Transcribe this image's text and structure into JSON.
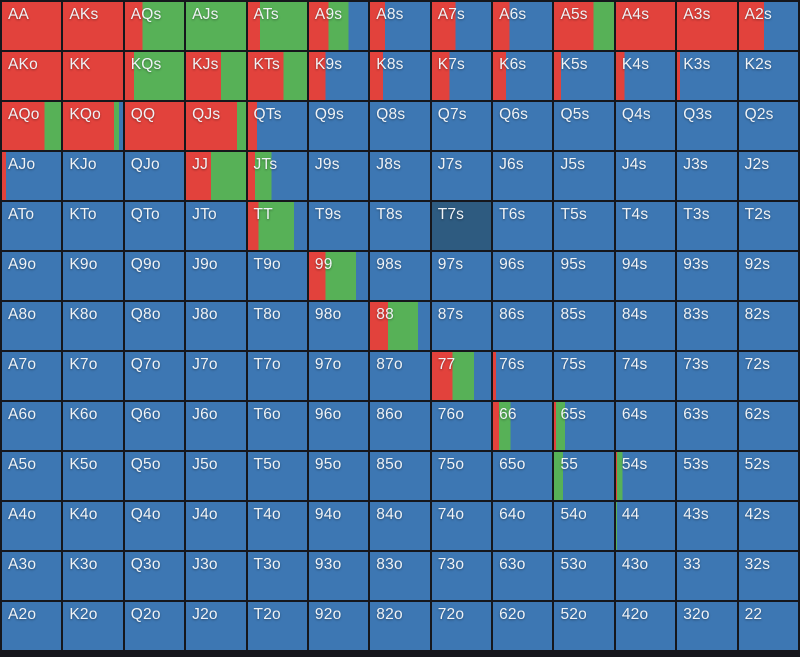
{
  "app": "poker-hand-range-matrix",
  "highlighted_cell": "T7s",
  "colors": {
    "r": "#e2423c",
    "g": "#57b157",
    "b": "#3d77b3",
    "d": "#2e5b80",
    "border": "#16171c",
    "text": "#f0f3f6"
  },
  "grid": {
    "rows": [
      {
        "cells": [
          {
            "l": "AA",
            "s": [
              [
                "r",
                100
              ]
            ]
          },
          {
            "l": "AKs",
            "s": [
              [
                "r",
                100
              ]
            ]
          },
          {
            "l": "AQs",
            "s": [
              [
                "r",
                30
              ],
              [
                "g",
                70
              ]
            ]
          },
          {
            "l": "AJs",
            "s": [
              [
                "g",
                100
              ]
            ]
          },
          {
            "l": "ATs",
            "s": [
              [
                "r",
                20
              ],
              [
                "g",
                80
              ]
            ]
          },
          {
            "l": "A9s",
            "s": [
              [
                "r",
                33
              ],
              [
                "g",
                34
              ],
              [
                "b",
                33
              ]
            ]
          },
          {
            "l": "A8s",
            "s": [
              [
                "r",
                25
              ],
              [
                "b",
                75
              ]
            ]
          },
          {
            "l": "A7s",
            "s": [
              [
                "r",
                40
              ],
              [
                "b",
                60
              ]
            ]
          },
          {
            "l": "A6s",
            "s": [
              [
                "r",
                28
              ],
              [
                "b",
                72
              ]
            ]
          },
          {
            "l": "A5s",
            "s": [
              [
                "r",
                66
              ],
              [
                "g",
                34
              ]
            ]
          },
          {
            "l": "A4s",
            "s": [
              [
                "r",
                100
              ]
            ]
          },
          {
            "l": "A3s",
            "s": [
              [
                "r",
                100
              ]
            ]
          },
          {
            "l": "A2s",
            "s": [
              [
                "r",
                42
              ],
              [
                "b",
                58
              ]
            ]
          }
        ]
      },
      {
        "cells": [
          {
            "l": "AKo",
            "s": [
              [
                "r",
                100
              ]
            ]
          },
          {
            "l": "KK",
            "s": [
              [
                "r",
                100
              ]
            ]
          },
          {
            "l": "KQs",
            "s": [
              [
                "r",
                15
              ],
              [
                "g",
                85
              ]
            ]
          },
          {
            "l": "KJs",
            "s": [
              [
                "r",
                58
              ],
              [
                "g",
                42
              ]
            ]
          },
          {
            "l": "KTs",
            "s": [
              [
                "r",
                60
              ],
              [
                "g",
                40
              ]
            ]
          },
          {
            "l": "K9s",
            "s": [
              [
                "r",
                28
              ],
              [
                "b",
                72
              ]
            ]
          },
          {
            "l": "K8s",
            "s": [
              [
                "r",
                22
              ],
              [
                "b",
                78
              ]
            ]
          },
          {
            "l": "K7s",
            "s": [
              [
                "r",
                30
              ],
              [
                "b",
                70
              ]
            ]
          },
          {
            "l": "K6s",
            "s": [
              [
                "r",
                22
              ],
              [
                "b",
                78
              ]
            ]
          },
          {
            "l": "K5s",
            "s": [
              [
                "r",
                12
              ],
              [
                "b",
                88
              ]
            ]
          },
          {
            "l": "K4s",
            "s": [
              [
                "r",
                14
              ],
              [
                "b",
                86
              ]
            ]
          },
          {
            "l": "K3s",
            "s": [
              [
                "r",
                5
              ],
              [
                "b",
                95
              ]
            ]
          },
          {
            "l": "K2s"
          }
        ]
      },
      {
        "cells": [
          {
            "l": "AQo",
            "s": [
              [
                "r",
                72
              ],
              [
                "g",
                28
              ]
            ]
          },
          {
            "l": "KQo",
            "s": [
              [
                "r",
                85
              ],
              [
                "g",
                8
              ],
              [
                "b",
                7
              ]
            ]
          },
          {
            "l": "QQ",
            "s": [
              [
                "r",
                100
              ]
            ]
          },
          {
            "l": "QJs",
            "s": [
              [
                "r",
                85
              ],
              [
                "g",
                15
              ]
            ]
          },
          {
            "l": "QTs",
            "s": [
              [
                "r",
                15
              ],
              [
                "b",
                85
              ]
            ]
          },
          {
            "l": "Q9s"
          },
          {
            "l": "Q8s"
          },
          {
            "l": "Q7s"
          },
          {
            "l": "Q6s"
          },
          {
            "l": "Q5s"
          },
          {
            "l": "Q4s"
          },
          {
            "l": "Q3s"
          },
          {
            "l": "Q2s"
          }
        ]
      },
      {
        "cells": [
          {
            "l": "AJo",
            "s": [
              [
                "r",
                7
              ],
              [
                "b",
                93
              ]
            ]
          },
          {
            "l": "KJo"
          },
          {
            "l": "QJo"
          },
          {
            "l": "JJ",
            "s": [
              [
                "r",
                42
              ],
              [
                "g",
                58
              ]
            ]
          },
          {
            "l": "JTs",
            "s": [
              [
                "r",
                12
              ],
              [
                "g",
                28
              ],
              [
                "b",
                60
              ]
            ]
          },
          {
            "l": "J9s"
          },
          {
            "l": "J8s"
          },
          {
            "l": "J7s"
          },
          {
            "l": "J6s"
          },
          {
            "l": "J5s"
          },
          {
            "l": "J4s"
          },
          {
            "l": "J3s"
          },
          {
            "l": "J2s"
          }
        ]
      },
      {
        "cells": [
          {
            "l": "ATo"
          },
          {
            "l": "KTo"
          },
          {
            "l": "QTo"
          },
          {
            "l": "JTo"
          },
          {
            "l": "TT",
            "s": [
              [
                "r",
                18
              ],
              [
                "g",
                60
              ],
              [
                "b",
                22
              ]
            ]
          },
          {
            "l": "T9s"
          },
          {
            "l": "T8s"
          },
          {
            "l": "T7s",
            "s": [
              [
                "d",
                100
              ]
            ]
          },
          {
            "l": "T6s"
          },
          {
            "l": "T5s"
          },
          {
            "l": "T4s"
          },
          {
            "l": "T3s"
          },
          {
            "l": "T2s"
          }
        ]
      },
      {
        "cells": [
          {
            "l": "A9o"
          },
          {
            "l": "K9o"
          },
          {
            "l": "Q9o"
          },
          {
            "l": "J9o"
          },
          {
            "l": "T9o"
          },
          {
            "l": "99",
            "s": [
              [
                "r",
                28
              ],
              [
                "g",
                52
              ],
              [
                "b",
                20
              ]
            ]
          },
          {
            "l": "98s"
          },
          {
            "l": "97s"
          },
          {
            "l": "96s"
          },
          {
            "l": "95s"
          },
          {
            "l": "94s"
          },
          {
            "l": "93s"
          },
          {
            "l": "92s"
          }
        ]
      },
      {
        "cells": [
          {
            "l": "A8o"
          },
          {
            "l": "K8o"
          },
          {
            "l": "Q8o"
          },
          {
            "l": "J8o"
          },
          {
            "l": "T8o"
          },
          {
            "l": "98o"
          },
          {
            "l": "88",
            "s": [
              [
                "r",
                30
              ],
              [
                "g",
                50
              ],
              [
                "b",
                20
              ]
            ]
          },
          {
            "l": "87s"
          },
          {
            "l": "86s"
          },
          {
            "l": "85s"
          },
          {
            "l": "84s"
          },
          {
            "l": "83s"
          },
          {
            "l": "82s"
          }
        ]
      },
      {
        "cells": [
          {
            "l": "A7o"
          },
          {
            "l": "K7o"
          },
          {
            "l": "Q7o"
          },
          {
            "l": "J7o"
          },
          {
            "l": "T7o"
          },
          {
            "l": "97o"
          },
          {
            "l": "87o"
          },
          {
            "l": "77",
            "s": [
              [
                "r",
                35
              ],
              [
                "g",
                36
              ],
              [
                "b",
                29
              ]
            ]
          },
          {
            "l": "76s",
            "s": [
              [
                "r",
                5
              ],
              [
                "b",
                95
              ]
            ]
          },
          {
            "l": "75s"
          },
          {
            "l": "74s"
          },
          {
            "l": "73s"
          },
          {
            "l": "72s"
          }
        ]
      },
      {
        "cells": [
          {
            "l": "A6o"
          },
          {
            "l": "K6o"
          },
          {
            "l": "Q6o"
          },
          {
            "l": "J6o"
          },
          {
            "l": "T6o"
          },
          {
            "l": "96o"
          },
          {
            "l": "86o"
          },
          {
            "l": "76o"
          },
          {
            "l": "66",
            "s": [
              [
                "r",
                10
              ],
              [
                "g",
                20
              ],
              [
                "b",
                70
              ]
            ]
          },
          {
            "l": "65s",
            "s": [
              [
                "r",
                3
              ],
              [
                "g",
                15
              ],
              [
                "b",
                82
              ]
            ]
          },
          {
            "l": "64s"
          },
          {
            "l": "63s"
          },
          {
            "l": "62s"
          }
        ]
      },
      {
        "cells": [
          {
            "l": "A5o"
          },
          {
            "l": "K5o"
          },
          {
            "l": "Q5o"
          },
          {
            "l": "J5o"
          },
          {
            "l": "T5o"
          },
          {
            "l": "95o"
          },
          {
            "l": "85o"
          },
          {
            "l": "75o"
          },
          {
            "l": "65o"
          },
          {
            "l": "55",
            "s": [
              [
                "g",
                15
              ],
              [
                "b",
                85
              ]
            ]
          },
          {
            "l": "54s",
            "s": [
              [
                "r",
                2
              ],
              [
                "g",
                9
              ],
              [
                "b",
                89
              ]
            ]
          },
          {
            "l": "53s"
          },
          {
            "l": "52s"
          }
        ]
      },
      {
        "cells": [
          {
            "l": "A4o"
          },
          {
            "l": "K4o"
          },
          {
            "l": "Q4o"
          },
          {
            "l": "J4o"
          },
          {
            "l": "T4o"
          },
          {
            "l": "94o"
          },
          {
            "l": "84o"
          },
          {
            "l": "74o"
          },
          {
            "l": "64o"
          },
          {
            "l": "54o"
          },
          {
            "l": "44",
            "s": [
              [
                "g",
                2
              ],
              [
                "b",
                98
              ]
            ]
          },
          {
            "l": "43s"
          },
          {
            "l": "42s"
          }
        ]
      },
      {
        "cells": [
          {
            "l": "A3o"
          },
          {
            "l": "K3o"
          },
          {
            "l": "Q3o"
          },
          {
            "l": "J3o"
          },
          {
            "l": "T3o"
          },
          {
            "l": "93o"
          },
          {
            "l": "83o"
          },
          {
            "l": "73o"
          },
          {
            "l": "63o"
          },
          {
            "l": "53o"
          },
          {
            "l": "43o"
          },
          {
            "l": "33"
          },
          {
            "l": "32s"
          }
        ]
      },
      {
        "cells": [
          {
            "l": "A2o"
          },
          {
            "l": "K2o"
          },
          {
            "l": "Q2o"
          },
          {
            "l": "J2o"
          },
          {
            "l": "T2o"
          },
          {
            "l": "92o"
          },
          {
            "l": "82o"
          },
          {
            "l": "72o"
          },
          {
            "l": "62o"
          },
          {
            "l": "52o"
          },
          {
            "l": "42o"
          },
          {
            "l": "32o"
          },
          {
            "l": "22"
          }
        ]
      }
    ]
  }
}
